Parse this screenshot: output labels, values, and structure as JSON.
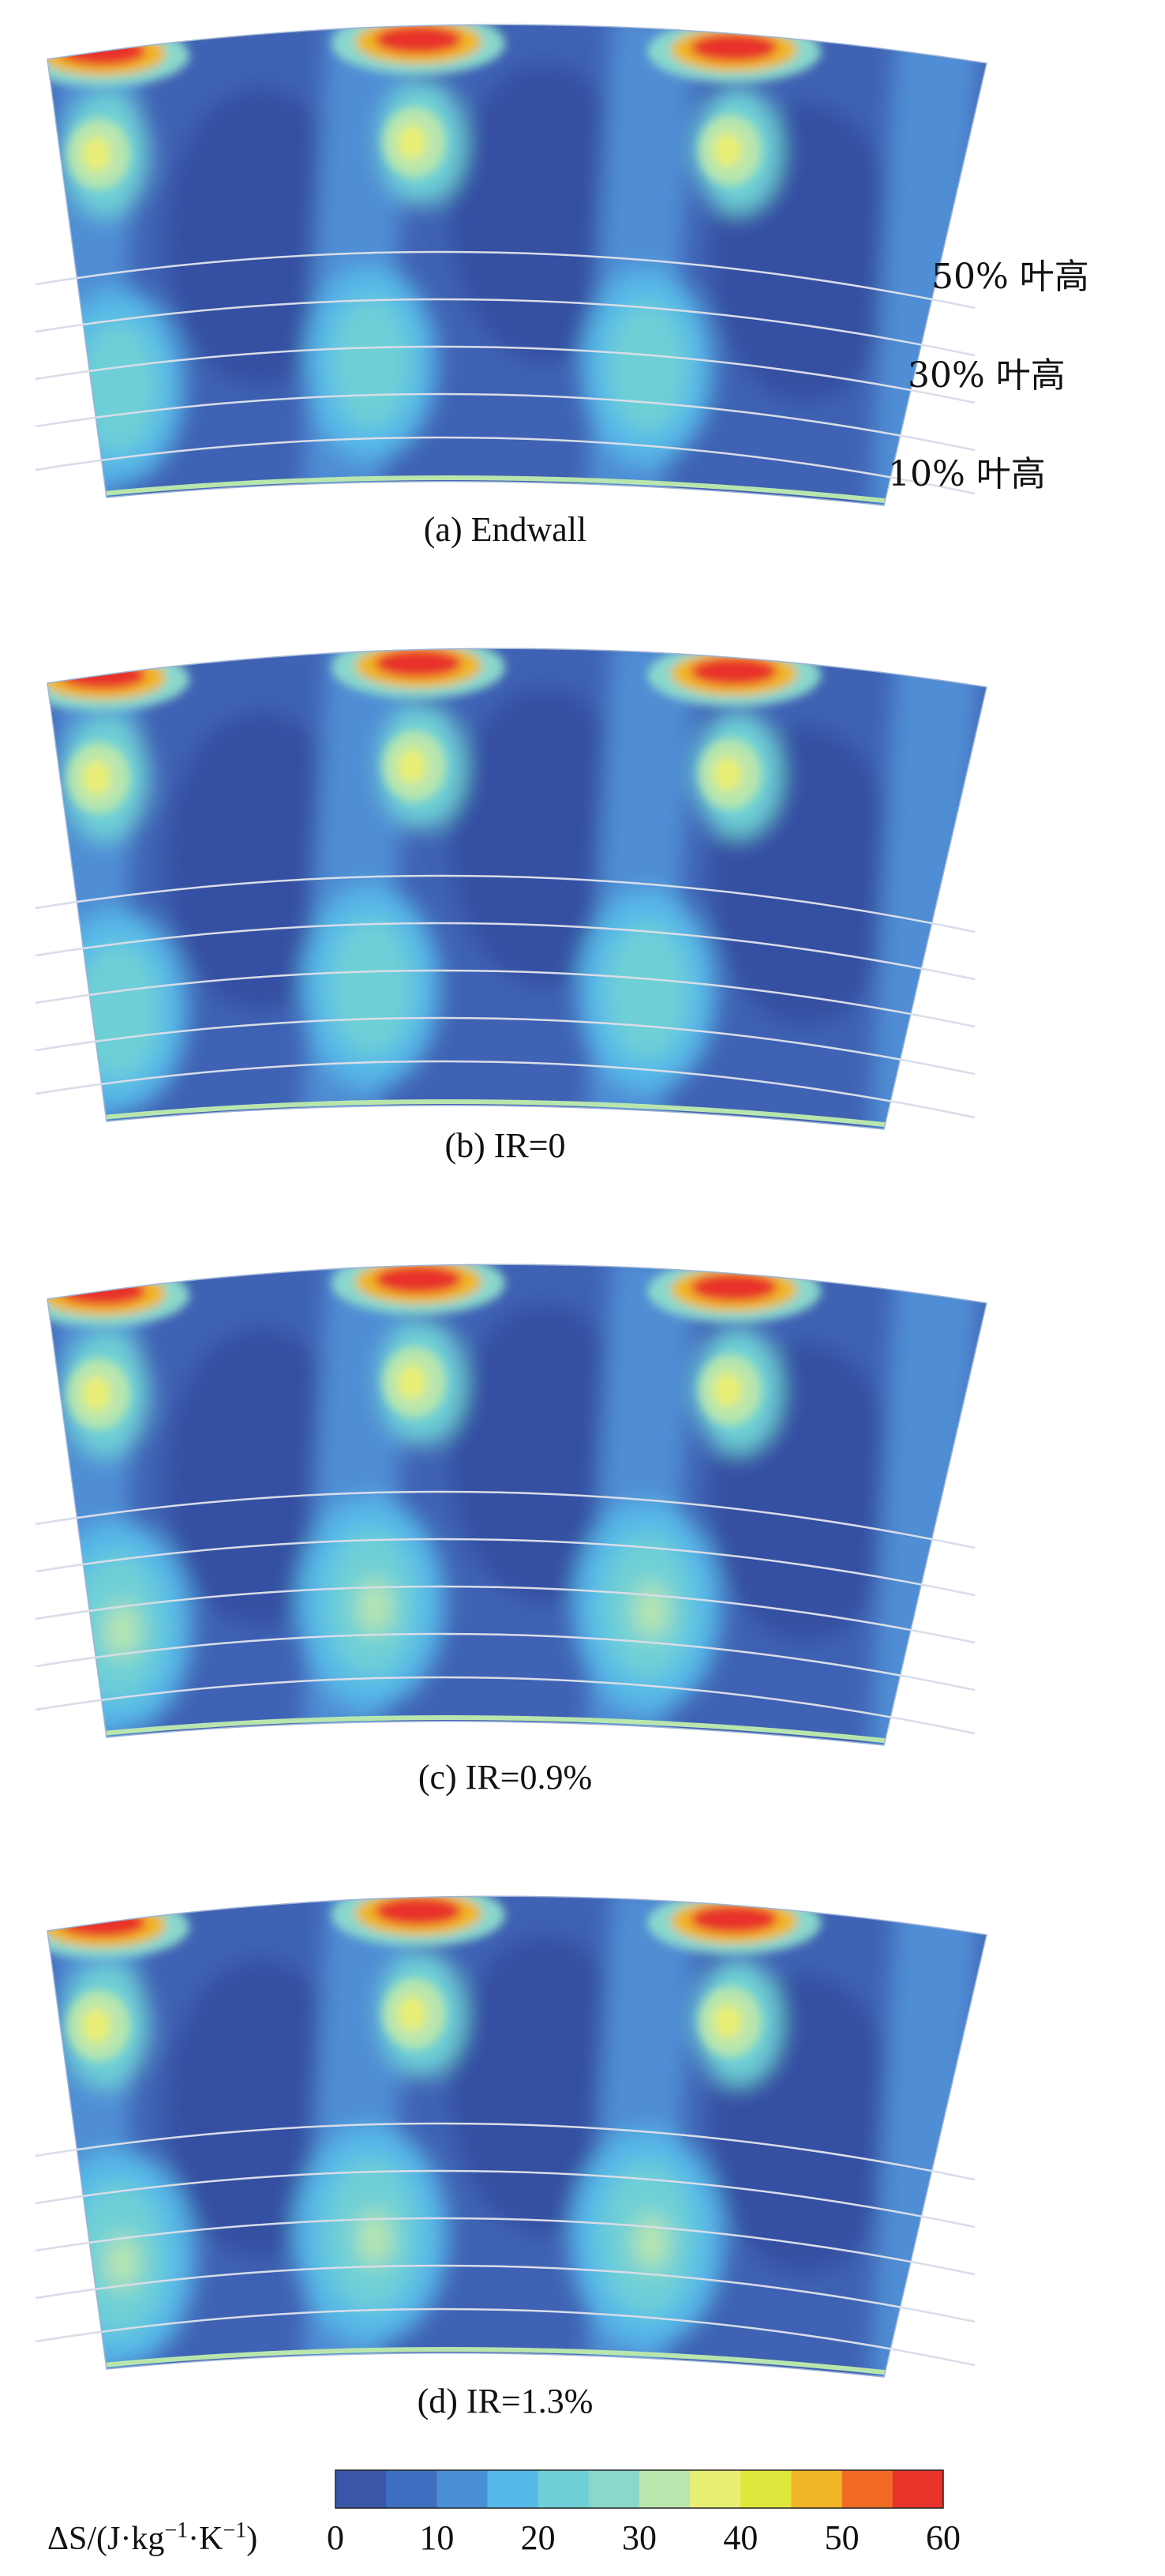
{
  "figure": {
    "panels": [
      {
        "id": "a",
        "caption": "(a) Endwall",
        "has_labels": true,
        "hub_blob_intensity": 0.35
      },
      {
        "id": "b",
        "caption": "(b) IR=0",
        "has_labels": false,
        "hub_blob_intensity": 0.45
      },
      {
        "id": "c",
        "caption": "(c) IR=0.9%",
        "has_labels": false,
        "hub_blob_intensity": 0.6
      },
      {
        "id": "d",
        "caption": "(d) IR=1.3%",
        "has_labels": false,
        "hub_blob_intensity": 0.7
      }
    ],
    "span_labels": [
      "50% 叶高",
      "30% 叶高",
      "10% 叶高"
    ]
  },
  "colorbar": {
    "label_prefix": "ΔS/(J·kg",
    "label_exp1": "−1",
    "label_mid": "·K",
    "label_exp2": "−1",
    "label_suffix": ")",
    "ticks": [
      "0",
      "10",
      "20",
      "30",
      "40",
      "50",
      "60"
    ],
    "colors": [
      "#3956a8",
      "#3d6ec0",
      "#4a8fd6",
      "#56b8e8",
      "#6ed0d6",
      "#8ad8cc",
      "#b9e6ad",
      "#e8ee74",
      "#dfe63c",
      "#f0b628",
      "#f06a24",
      "#e8332a"
    ]
  }
}
